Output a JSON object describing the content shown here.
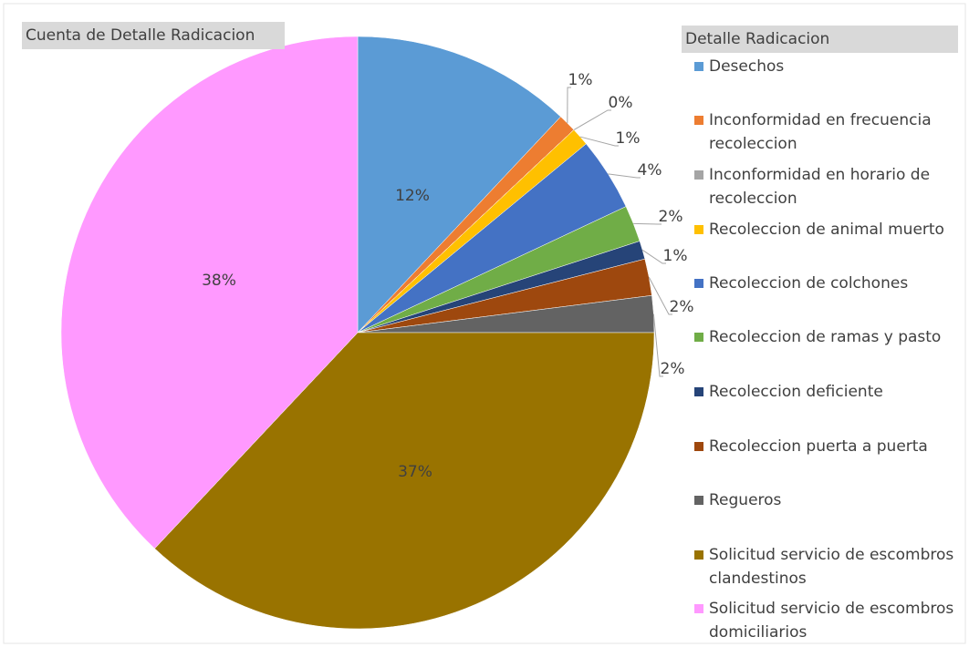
{
  "chart_data": {
    "type": "pie",
    "title": "Cuenta de Detalle Radicacion",
    "legend_title": "Detalle Radicacion",
    "categories": [
      "Desechos",
      "Inconformidad en frecuencia recoleccion",
      "Inconformidad en horario de recoleccion",
      "Recoleccion de animal muerto",
      "Recoleccion de colchones",
      "Recoleccion de ramas y pasto",
      "Recoleccion deficiente",
      "Recoleccion puerta a puerta",
      "Regueros",
      "Solicitud servicio de escombros clandestinos",
      "Solicitud servicio de escombros domiciliarios"
    ],
    "values": [
      12,
      1,
      0,
      1,
      4,
      2,
      1,
      2,
      2,
      37,
      38
    ],
    "value_labels": [
      "12%",
      "1%",
      "0%",
      "1%",
      "4%",
      "2%",
      "1%",
      "2%",
      "2%",
      "37%",
      "38%"
    ],
    "colors": [
      "#5b9bd5",
      "#ed7d31",
      "#a5a5a5",
      "#ffc000",
      "#4472c4",
      "#70ad47",
      "#264478",
      "#9e480e",
      "#636363",
      "#997300",
      "#ff99ff"
    ],
    "legend": "right"
  }
}
